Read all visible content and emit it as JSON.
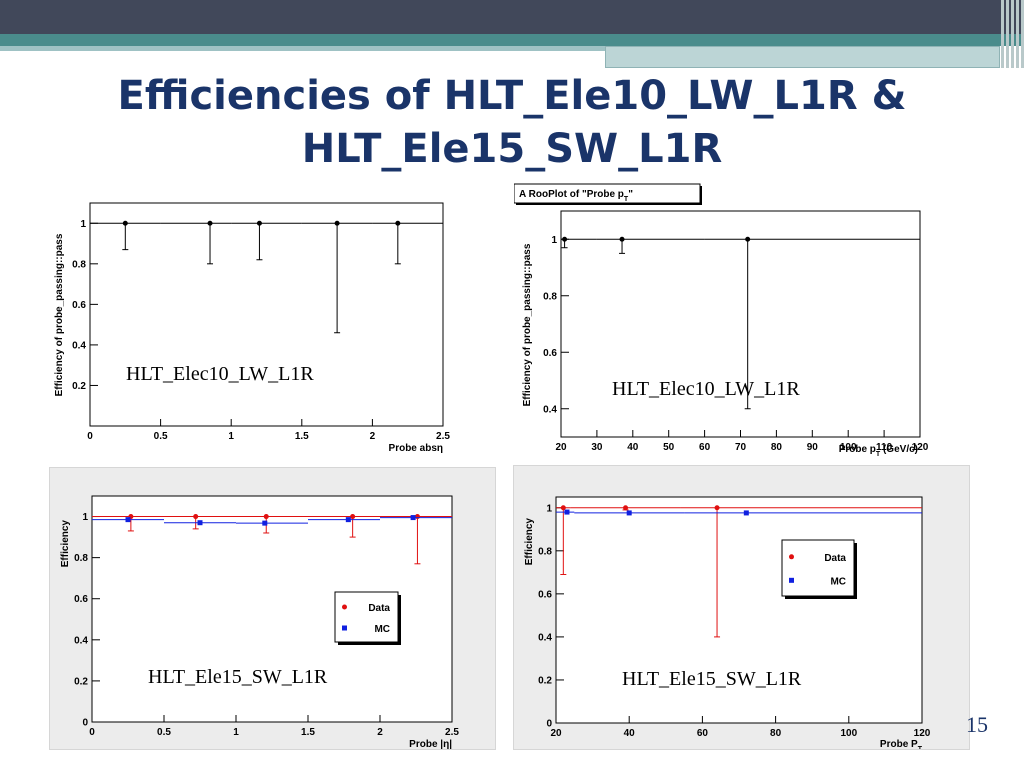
{
  "slide": {
    "title_line1": "Efficiencies of HLT_Ele10_LW_L1R &",
    "title_line2": "HLT_Ele15_SW_L1R",
    "page_number": "15"
  },
  "colors": {
    "title": "#1a3469",
    "data": "#e01010",
    "mc": "#1020e0",
    "single": "#000000"
  },
  "chart_data": [
    {
      "type": "scatter",
      "title": "",
      "xlabel": "Probe absη",
      "ylabel": "Efficiency of probe_passing::pass",
      "annotation": "HLT_Elec10_LW_L1R",
      "xlim": [
        0,
        2.5
      ],
      "ylim": [
        0,
        1.1
      ],
      "xticks": [
        "0",
        "0.5",
        "1",
        "1.5",
        "2",
        "2.5"
      ],
      "yticks": [
        "0.2",
        "0.4",
        "0.6",
        "0.8",
        "1"
      ],
      "series": [
        {
          "color": "#000000",
          "points": [
            {
              "x": 0.25,
              "y": 1,
              "xlo": 0.0,
              "xhi": 0.5,
              "ylo": 0.87
            },
            {
              "x": 0.85,
              "y": 1,
              "xlo": 0.5,
              "xhi": 1.0,
              "ylo": 0.8
            },
            {
              "x": 1.2,
              "y": 1,
              "xlo": 1.0,
              "xhi": 1.5,
              "ylo": 0.82
            },
            {
              "x": 1.75,
              "y": 1,
              "xlo": 1.5,
              "xhi": 2.0,
              "ylo": 0.46
            },
            {
              "x": 2.18,
              "y": 1,
              "xlo": 2.0,
              "xhi": 2.5,
              "ylo": 0.8
            }
          ]
        }
      ]
    },
    {
      "type": "scatter",
      "title": "A RooPlot of \"Probe p",
      "title_sub": "T",
      "title_end": "\"",
      "xlabel": "Probe p",
      "xlabel_sub": "T",
      "xlabel_end": " (GeV/c)",
      "ylabel": "Efficiency of probe_passing::pass",
      "annotation": "HLT_Elec10_LW_L1R",
      "xlim": [
        20,
        120
      ],
      "ylim": [
        0.3,
        1.1
      ],
      "xticks": [
        "20",
        "30",
        "40",
        "50",
        "60",
        "70",
        "80",
        "90",
        "100",
        "110",
        "120"
      ],
      "yticks": [
        "0.4",
        "0.6",
        "0.8",
        "1"
      ],
      "series": [
        {
          "color": "#000000",
          "points": [
            {
              "x": 21,
              "y": 1,
              "xlo": 20,
              "xhi": 30,
              "ylo": 0.97
            },
            {
              "x": 37,
              "y": 1,
              "xlo": 30,
              "xhi": 60,
              "ylo": 0.95
            },
            {
              "x": 72,
              "y": 1,
              "xlo": 60,
              "xhi": 120,
              "ylo": 0.4
            }
          ]
        }
      ]
    },
    {
      "type": "scatter",
      "title": "",
      "xlabel": "Probe |η|",
      "ylabel": "Efficiency",
      "annotation": "HLT_Ele15_SW_L1R",
      "xlim": [
        0,
        2.5
      ],
      "ylim": [
        0,
        1.1
      ],
      "xticks": [
        "0",
        "0.5",
        "1",
        "1.5",
        "2",
        "2.5"
      ],
      "yticks": [
        "0",
        "0.2",
        "0.4",
        "0.6",
        "0.8",
        "1"
      ],
      "legend": {
        "entries": [
          "Data",
          "MC"
        ],
        "position": "middle-right"
      },
      "series": [
        {
          "name": "Data",
          "color": "#e01010",
          "points": [
            {
              "x": 0.27,
              "y": 1,
              "xlo": 0.0,
              "xhi": 0.5,
              "ylo": 0.93
            },
            {
              "x": 0.72,
              "y": 1,
              "xlo": 0.5,
              "xhi": 1.0,
              "ylo": 0.94
            },
            {
              "x": 1.21,
              "y": 1,
              "xlo": 1.0,
              "xhi": 1.5,
              "ylo": 0.92
            },
            {
              "x": 1.81,
              "y": 1,
              "xlo": 1.5,
              "xhi": 2.0,
              "ylo": 0.9
            },
            {
              "x": 2.26,
              "y": 1,
              "xlo": 2.0,
              "xhi": 2.5,
              "ylo": 0.77
            }
          ]
        },
        {
          "name": "MC",
          "color": "#1020e0",
          "points": [
            {
              "x": 0.25,
              "y": 0.985,
              "xlo": 0.0,
              "xhi": 0.5
            },
            {
              "x": 0.75,
              "y": 0.97,
              "xlo": 0.5,
              "xhi": 1.0
            },
            {
              "x": 1.2,
              "y": 0.968,
              "xlo": 1.0,
              "xhi": 1.5
            },
            {
              "x": 1.78,
              "y": 0.985,
              "xlo": 1.5,
              "xhi": 2.0
            },
            {
              "x": 2.23,
              "y": 0.995,
              "xlo": 2.0,
              "xhi": 2.5
            }
          ]
        }
      ]
    },
    {
      "type": "scatter",
      "title": "",
      "xlabel": "Probe P",
      "xlabel_sub": "T",
      "xlabel_end": "",
      "ylabel": "Efficiency",
      "annotation": "HLT_Ele15_SW_L1R",
      "xlim": [
        20,
        120
      ],
      "ylim": [
        0,
        1.05
      ],
      "xticks": [
        "20",
        "40",
        "60",
        "80",
        "100",
        "120"
      ],
      "yticks": [
        "0",
        "0.2",
        "0.4",
        "0.6",
        "0.8",
        "1"
      ],
      "legend": {
        "entries": [
          "Data",
          "MC"
        ],
        "position": "top-right"
      },
      "series": [
        {
          "name": "Data",
          "color": "#e01010",
          "points": [
            {
              "x": 22,
              "y": 1,
              "xlo": 20,
              "xhi": 24,
              "ylo": 0.69
            },
            {
              "x": 39,
              "y": 1,
              "xlo": 24,
              "xhi": 54,
              "ylo": 0.99
            },
            {
              "x": 64,
              "y": 1,
              "xlo": 54,
              "xhi": 120,
              "ylo": 0.4
            }
          ]
        },
        {
          "name": "MC",
          "color": "#1020e0",
          "points": [
            {
              "x": 23,
              "y": 0.98,
              "xlo": 20,
              "xhi": 25
            },
            {
              "x": 40,
              "y": 0.976,
              "xlo": 25,
              "xhi": 55
            },
            {
              "x": 72,
              "y": 0.976,
              "xlo": 55,
              "xhi": 120
            }
          ]
        }
      ]
    }
  ]
}
